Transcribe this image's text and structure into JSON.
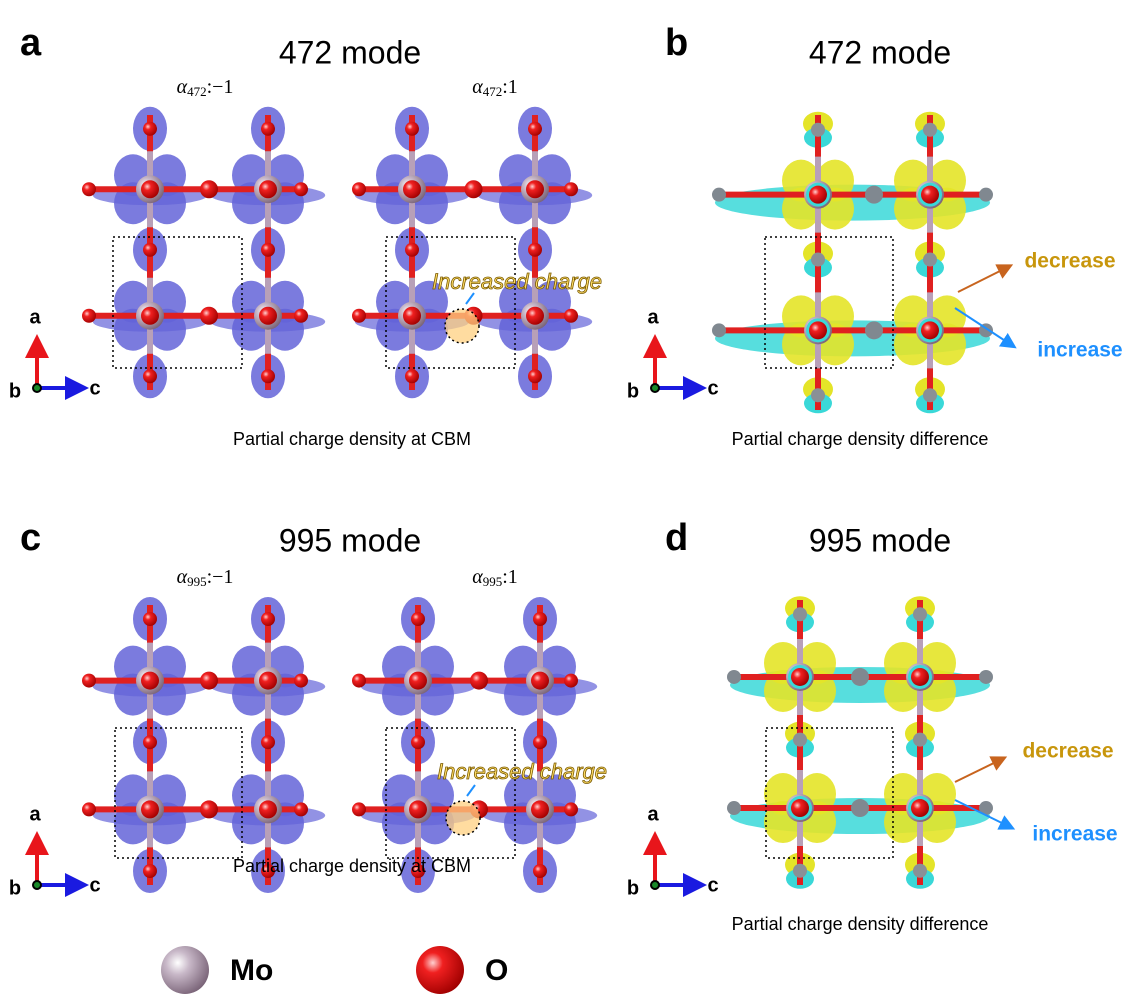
{
  "panels": [
    {
      "letter": "a",
      "title": "472 mode",
      "states": [
        {
          "symbol": "α",
          "subscript": "472",
          "value": ":−1"
        },
        {
          "symbol": "α",
          "subscript": "472",
          "value": ":1"
        }
      ],
      "annotation": "Increased charge",
      "caption": "Partial charge density at CBM",
      "axes": [
        "a",
        "b",
        "c"
      ]
    },
    {
      "letter": "b",
      "title": "472 mode",
      "labels": [
        "decrease",
        "increase"
      ],
      "caption": "Partial charge density difference",
      "axes": [
        "a",
        "b",
        "c"
      ]
    },
    {
      "letter": "c",
      "title": "995 mode",
      "states": [
        {
          "symbol": "α",
          "subscript": "995",
          "value": ":−1"
        },
        {
          "symbol": "α",
          "subscript": "995",
          "value": ":1"
        }
      ],
      "annotation": "Increased charge",
      "caption": "Partial charge density at CBM",
      "axes": [
        "a",
        "b",
        "c"
      ]
    },
    {
      "letter": "d",
      "title": "995 mode",
      "labels": [
        "decrease",
        "increase"
      ],
      "caption": "Partial charge density difference",
      "axes": [
        "a",
        "b",
        "c"
      ]
    }
  ],
  "legend": [
    {
      "label": "Mo"
    },
    {
      "label": "O"
    }
  ]
}
